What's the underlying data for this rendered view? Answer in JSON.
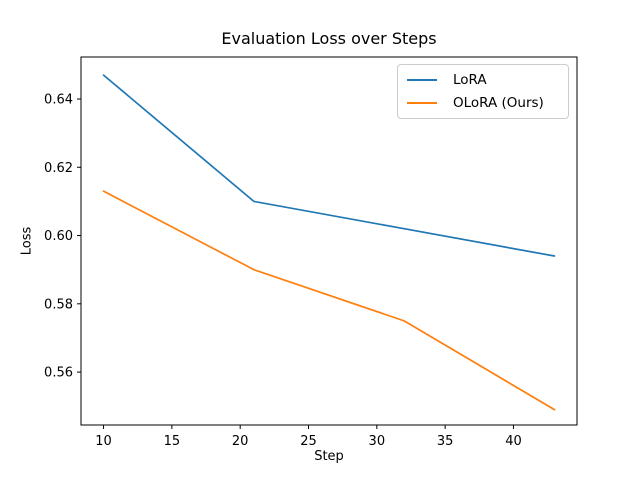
{
  "figure": {
    "title": "Evaluation Loss over Steps",
    "xlabel": "Step",
    "ylabel": "Loss"
  },
  "chart_data": {
    "type": "line",
    "title": "Evaluation Loss over Steps",
    "xlabel": "Step",
    "ylabel": "Loss",
    "x": [
      10,
      21,
      32,
      43
    ],
    "series": [
      {
        "name": "LoRA",
        "color": "#1f77b4",
        "values": [
          0.647,
          0.61,
          0.602,
          0.594
        ]
      },
      {
        "name": "OLoRA (Ours)",
        "color": "#ff7f0e",
        "values": [
          0.613,
          0.59,
          0.575,
          0.549
        ]
      }
    ],
    "xticks": [
      10,
      15,
      20,
      25,
      30,
      35,
      40
    ],
    "xtick_labels": [
      "10",
      "15",
      "20",
      "25",
      "30",
      "35",
      "40"
    ],
    "yticks": [
      0.56,
      0.58,
      0.6,
      0.62,
      0.64
    ],
    "ytick_labels": [
      "0.56",
      "0.58",
      "0.60",
      "0.62",
      "0.64"
    ],
    "xlim": [
      8.35,
      44.65
    ],
    "ylim": [
      0.5445,
      0.6523
    ],
    "grid": false,
    "legend_position": "upper right",
    "background_color": "#ffffff",
    "spine_color": "#000000"
  }
}
